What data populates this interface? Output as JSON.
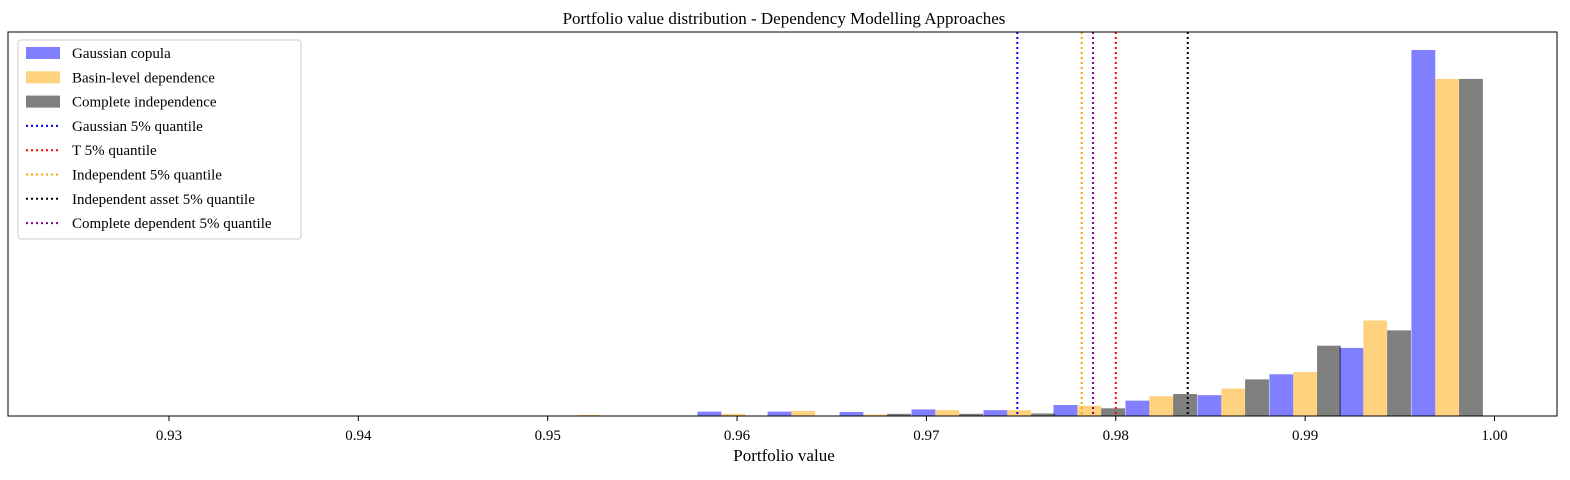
{
  "chart_data": {
    "type": "bar",
    "title": "Portfolio value distribution - Dependency Modelling Approaches",
    "xlabel": "Portfolio value",
    "ylabel": "",
    "xlim": [
      0.9215,
      1.0033
    ],
    "ylim": [
      0,
      1
    ],
    "xticks": [
      0.93,
      0.94,
      0.95,
      0.96,
      0.97,
      0.98,
      0.99,
      1.0
    ],
    "xtick_labels": [
      "0.93",
      "0.94",
      "0.95",
      "0.96",
      "0.97",
      "0.98",
      "0.99",
      "1.00"
    ],
    "grid": false,
    "legend_position": "top-left",
    "bin_centers": [
      0.9522,
      0.956,
      0.9598,
      0.9635,
      0.9673,
      0.9711,
      0.9749,
      0.9786,
      0.9824,
      0.9862,
      0.99,
      0.9937,
      0.9975
    ],
    "series": [
      {
        "name": "Gaussian copula",
        "color": "#0000ff",
        "opacity": 0.5,
        "values": [
          0.0,
          0.0,
          0.012,
          0.012,
          0.011,
          0.018,
          0.016,
          0.03,
          0.042,
          0.057,
          0.114,
          0.186,
          1.0
        ]
      },
      {
        "name": "Basin-level dependence",
        "color": "#ffa500",
        "opacity": 0.5,
        "values": [
          0.003,
          0.0,
          0.006,
          0.014,
          0.004,
          0.016,
          0.016,
          0.028,
          0.054,
          0.075,
          0.12,
          0.261,
          0.921
        ]
      },
      {
        "name": "Complete independence",
        "color": "#000000",
        "opacity": 0.5,
        "values": [
          0.0,
          0.0,
          0.0,
          0.0,
          0.006,
          0.006,
          0.007,
          0.021,
          0.06,
          0.1,
          0.192,
          0.234,
          0.921
        ]
      }
    ],
    "vlines": [
      {
        "name": "Gaussian 5% quantile",
        "x": 0.9748,
        "color": "#0000ff",
        "style": "dotted"
      },
      {
        "name": "T 5% quantile",
        "x": 0.98,
        "color": "#ff0000",
        "style": "dotted"
      },
      {
        "name": "Independent 5% quantile",
        "x": 0.9782,
        "color": "#ffa500",
        "style": "dotted"
      },
      {
        "name": "Independent asset 5% quantile",
        "x": 0.9838,
        "color": "#000000",
        "style": "dotted"
      },
      {
        "name": "Complete dependent 5% quantile",
        "x": 0.9788,
        "color": "#800080",
        "style": "dotted"
      }
    ]
  }
}
